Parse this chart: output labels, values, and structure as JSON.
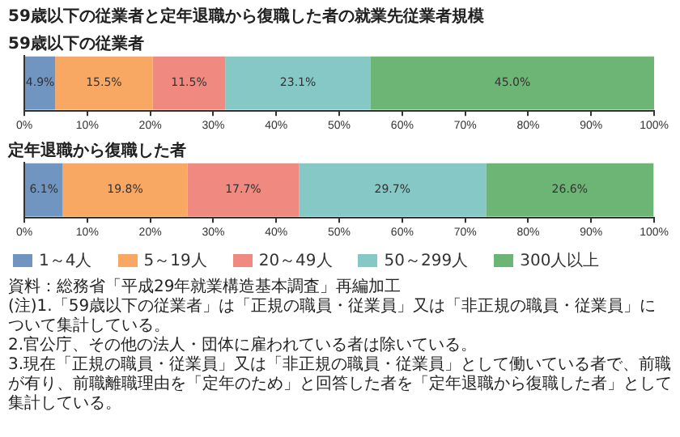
{
  "chart_data": [
    {
      "type": "bar",
      "title": "59歳以下の従業者と定年退職から復職した者の就業先従業者規模",
      "subtitle": "59歳以下の従業者",
      "orientation": "horizontal",
      "stacked": true,
      "categories": [
        null
      ],
      "xlim": [
        0,
        100
      ],
      "xticks": [
        {
          "value": 0,
          "label": "0%"
        },
        {
          "value": 10,
          "label": "10%"
        },
        {
          "value": 20,
          "label": "20%"
        },
        {
          "value": 30,
          "label": "30%"
        },
        {
          "value": 40,
          "label": "40%"
        },
        {
          "value": 50,
          "label": "50%"
        },
        {
          "value": 60,
          "label": "60%"
        },
        {
          "value": 70,
          "label": "70%"
        },
        {
          "value": 80,
          "label": "80%"
        },
        {
          "value": 90,
          "label": "90%"
        },
        {
          "value": 100,
          "label": "100%"
        }
      ],
      "tick_labels": "x",
      "grid": false,
      "legend": false,
      "series": [
        {
          "color": "#6f95c0",
          "values": [
            4.9
          ],
          "value_labels": [
            "4.9%"
          ]
        },
        {
          "color": "#f8a863",
          "values": [
            15.5
          ],
          "value_labels": [
            "15.5%"
          ]
        },
        {
          "color": "#f08a80",
          "values": [
            11.5
          ],
          "value_labels": [
            "11.5%"
          ]
        },
        {
          "color": "#85c8c6",
          "values": [
            23.1
          ],
          "value_labels": [
            "23.1%"
          ]
        },
        {
          "color": "#6db574",
          "values": [
            45.0
          ],
          "value_labels": [
            "45.0%"
          ]
        }
      ]
    },
    {
      "type": "bar",
      "subtitle": "定年退職から復職した者",
      "orientation": "horizontal",
      "stacked": true,
      "categories": [
        null
      ],
      "xlim": [
        0,
        100
      ],
      "xticks": [
        {
          "value": 0,
          "label": "0%"
        },
        {
          "value": 10,
          "label": "10%"
        },
        {
          "value": 20,
          "label": "20%"
        },
        {
          "value": 30,
          "label": "30%"
        },
        {
          "value": 40,
          "label": "40%"
        },
        {
          "value": 50,
          "label": "50%"
        },
        {
          "value": 60,
          "label": "60%"
        },
        {
          "value": 70,
          "label": "70%"
        },
        {
          "value": 80,
          "label": "80%"
        },
        {
          "value": 90,
          "label": "90%"
        },
        {
          "value": 100,
          "label": "100%"
        }
      ],
      "tick_labels": "x",
      "grid": false,
      "legend": "bottom",
      "series": [
        {
          "name": "1～4人",
          "color": "#6f95c0",
          "values": [
            6.1
          ],
          "value_labels": [
            "6.1%"
          ]
        },
        {
          "name": "5～19人",
          "color": "#f8a863",
          "values": [
            19.8
          ],
          "value_labels": [
            "19.8%"
          ]
        },
        {
          "name": "20～49人",
          "color": "#f08a80",
          "values": [
            17.7
          ],
          "value_labels": [
            "17.7%"
          ]
        },
        {
          "name": "50～299人",
          "color": "#85c8c6",
          "values": [
            29.7
          ],
          "value_labels": [
            "29.7%"
          ]
        },
        {
          "name": "300人以上",
          "color": "#6db574",
          "values": [
            26.6
          ],
          "value_labels": [
            "26.6%"
          ]
        }
      ],
      "annotations": [
        "資料：総務省「平成29年就業構造基本調査」再編加工",
        "(注)1.「59歳以下の従業者」は「正規の職員・従業員」又は「非正規の職員・従業員」について集計している。",
        "2.官公庁、その他の法人・団体に雇われている者は除いている。",
        "3.現在「正規の職員・従業員」又は「非正規の職員・従業員」として働いている者で、前職が有り、前職離職理由を「定年のため」と回答した者を「定年退職から復職した者」として集計している。"
      ]
    }
  ]
}
